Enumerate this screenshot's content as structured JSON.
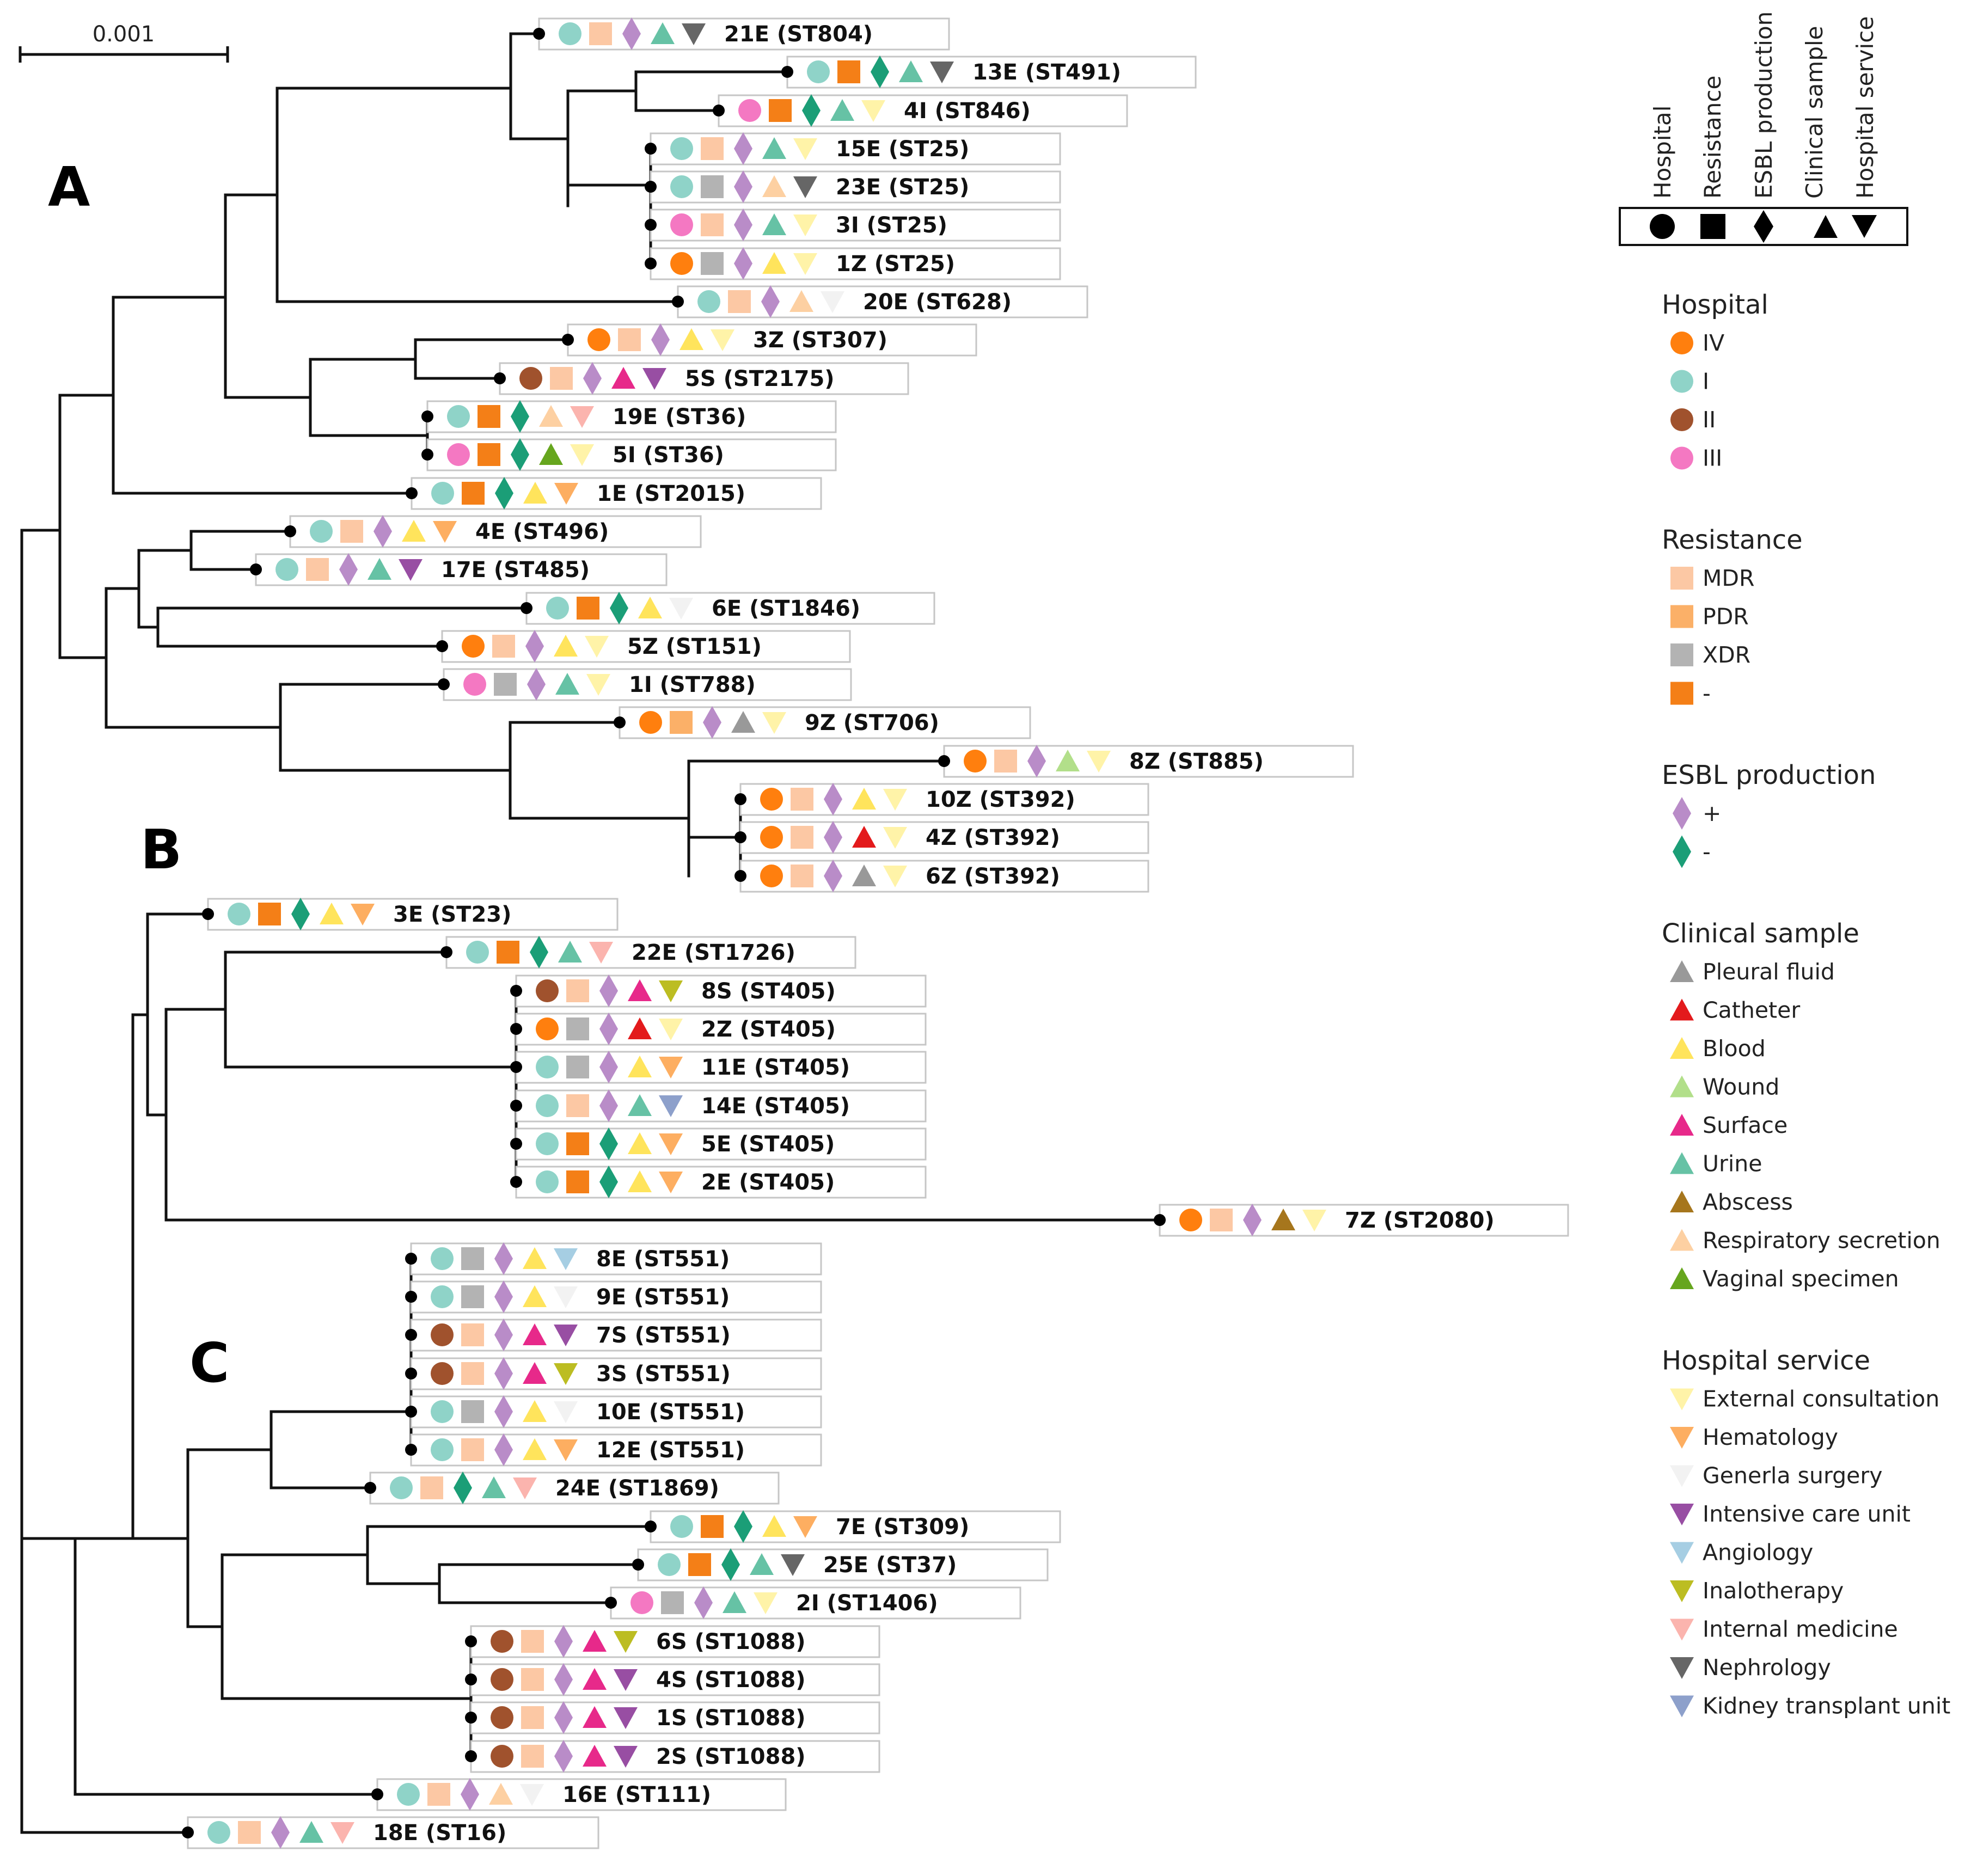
{
  "scale_bar": "0.001",
  "clades": [
    "A",
    "B",
    "C"
  ],
  "key_headers": [
    "Hospital",
    "Resistance",
    "ESBL production",
    "Clinical sample",
    "Hospital service"
  ],
  "colors": {
    "hospital": {
      "IV": "#ff7f0e",
      "I": "#8fd3c8",
      "II": "#a0522d",
      "III": "#f478c2"
    },
    "resistance": {
      "MDR": "#fcc8a4",
      "PDR": "#fbb068",
      "XDR": "#b3b3b3",
      "-": "#f47f17"
    },
    "esbl": {
      "+": "#b98cc8",
      "-": "#1b9e77"
    },
    "sample": {
      "Pleural fluid": "#999999",
      "Catheter": "#e31a1c",
      "Blood": "#ffe45c",
      "Wound": "#b2df8a",
      "Surface": "#e7298a",
      "Urine": "#66c2a5",
      "Abscess": "#a6761d",
      "Respiratory secretion": "#fdd0a2",
      "Vaginal specimen": "#66a61e"
    },
    "service": {
      "External consultation": "#fff3a8",
      "Hematology": "#fdae61",
      "Generla surgery": "#f2f2f2",
      "Intensive care unit": "#984ea3",
      "Angiology": "#a6cee3",
      "Inalotherapy": "#bcbd22",
      "Internal medicine": "#fbb4ae",
      "Nephrology": "#666666",
      "Kidney transplant unit": "#8da0cb"
    }
  },
  "legend": [
    {
      "title": "Hospital",
      "shape": "circle",
      "items": [
        "IV",
        "I",
        "II",
        "III"
      ],
      "key": "hospital"
    },
    {
      "title": "Resistance",
      "shape": "square",
      "items": [
        "MDR",
        "PDR",
        "XDR",
        "-"
      ],
      "key": "resistance"
    },
    {
      "title": "ESBL production",
      "shape": "diamond",
      "items": [
        "+",
        "-"
      ],
      "key": "esbl"
    },
    {
      "title": "Clinical sample",
      "shape": "triangle",
      "items": [
        "Pleural fluid",
        "Catheter",
        "Blood",
        "Wound",
        "Surface",
        "Urine",
        "Abscess",
        "Respiratory secretion",
        "Vaginal specimen"
      ],
      "key": "sample"
    },
    {
      "title": "Hospital service",
      "shape": "inv-triangle",
      "items": [
        "External consultation",
        "Hematology",
        "Generla surgery",
        "Intensive care unit",
        "Angiology",
        "Inalotherapy",
        "Internal medicine",
        "Nephrology",
        "Kidney transplant unit"
      ],
      "key": "service"
    }
  ],
  "leaves": [
    {
      "label": "21E (ST804)",
      "hospital": "I",
      "resistance": "MDR",
      "esbl": "+",
      "sample": "Urine",
      "service": "Nephrology"
    },
    {
      "label": "13E (ST491)",
      "hospital": "I",
      "resistance": "-",
      "esbl": "-",
      "sample": "Urine",
      "service": "Nephrology"
    },
    {
      "label": "4I (ST846)",
      "hospital": "III",
      "resistance": "-",
      "esbl": "-",
      "sample": "Urine",
      "service": "External consultation"
    },
    {
      "label": "15E (ST25)",
      "hospital": "I",
      "resistance": "MDR",
      "esbl": "+",
      "sample": "Urine",
      "service": "External consultation"
    },
    {
      "label": "23E (ST25)",
      "hospital": "I",
      "resistance": "XDR",
      "esbl": "+",
      "sample": "Respiratory secretion",
      "service": "Nephrology"
    },
    {
      "label": "3I (ST25)",
      "hospital": "III",
      "resistance": "MDR",
      "esbl": "+",
      "sample": "Urine",
      "service": "External consultation"
    },
    {
      "label": "1Z (ST25)",
      "hospital": "IV",
      "resistance": "XDR",
      "esbl": "+",
      "sample": "Blood",
      "service": "External consultation"
    },
    {
      "label": "20E (ST628)",
      "hospital": "I",
      "resistance": "MDR",
      "esbl": "+",
      "sample": "Respiratory secretion",
      "service": "Generla surgery"
    },
    {
      "label": "3Z (ST307)",
      "hospital": "IV",
      "resistance": "MDR",
      "esbl": "+",
      "sample": "Blood",
      "service": "External consultation"
    },
    {
      "label": "5S (ST2175)",
      "hospital": "II",
      "resistance": "MDR",
      "esbl": "+",
      "sample": "Surface",
      "service": "Intensive care unit"
    },
    {
      "label": "19E (ST36)",
      "hospital": "I",
      "resistance": "-",
      "esbl": "-",
      "sample": "Respiratory secretion",
      "service": "Internal medicine"
    },
    {
      "label": "5I (ST36)",
      "hospital": "III",
      "resistance": "-",
      "esbl": "-",
      "sample": "Vaginal specimen",
      "service": "External consultation"
    },
    {
      "label": "1E (ST2015)",
      "hospital": "I",
      "resistance": "-",
      "esbl": "-",
      "sample": "Blood",
      "service": "Hematology"
    },
    {
      "label": "4E (ST496)",
      "hospital": "I",
      "resistance": "MDR",
      "esbl": "+",
      "sample": "Blood",
      "service": "Hematology"
    },
    {
      "label": "17E (ST485)",
      "hospital": "I",
      "resistance": "MDR",
      "esbl": "+",
      "sample": "Urine",
      "service": "Intensive care unit"
    },
    {
      "label": "6E (ST1846)",
      "hospital": "I",
      "resistance": "-",
      "esbl": "-",
      "sample": "Blood",
      "service": "Generla surgery"
    },
    {
      "label": "5Z (ST151)",
      "hospital": "IV",
      "resistance": "MDR",
      "esbl": "+",
      "sample": "Blood",
      "service": "External consultation"
    },
    {
      "label": "1I (ST788)",
      "hospital": "III",
      "resistance": "XDR",
      "esbl": "+",
      "sample": "Urine",
      "service": "External consultation"
    },
    {
      "label": "9Z (ST706)",
      "hospital": "IV",
      "resistance": "PDR",
      "esbl": "+",
      "sample": "Pleural fluid",
      "service": "External consultation"
    },
    {
      "label": "8Z (ST885)",
      "hospital": "IV",
      "resistance": "MDR",
      "esbl": "+",
      "sample": "Wound",
      "service": "External consultation"
    },
    {
      "label": "10Z (ST392)",
      "hospital": "IV",
      "resistance": "MDR",
      "esbl": "+",
      "sample": "Blood",
      "service": "External consultation"
    },
    {
      "label": "4Z (ST392)",
      "hospital": "IV",
      "resistance": "MDR",
      "esbl": "+",
      "sample": "Catheter",
      "service": "External consultation"
    },
    {
      "label": "6Z (ST392)",
      "hospital": "IV",
      "resistance": "MDR",
      "esbl": "+",
      "sample": "Pleural fluid",
      "service": "External consultation"
    },
    {
      "label": "3E (ST23)",
      "hospital": "I",
      "resistance": "-",
      "esbl": "-",
      "sample": "Blood",
      "service": "Hematology"
    },
    {
      "label": "22E (ST1726)",
      "hospital": "I",
      "resistance": "-",
      "esbl": "-",
      "sample": "Urine",
      "service": "Internal medicine"
    },
    {
      "label": "8S (ST405)",
      "hospital": "II",
      "resistance": "MDR",
      "esbl": "+",
      "sample": "Surface",
      "service": "Inalotherapy"
    },
    {
      "label": "2Z (ST405)",
      "hospital": "IV",
      "resistance": "XDR",
      "esbl": "+",
      "sample": "Catheter",
      "service": "External consultation"
    },
    {
      "label": "11E (ST405)",
      "hospital": "I",
      "resistance": "XDR",
      "esbl": "+",
      "sample": "Blood",
      "service": "Hematology"
    },
    {
      "label": "14E (ST405)",
      "hospital": "I",
      "resistance": "MDR",
      "esbl": "+",
      "sample": "Urine",
      "service": "Kidney transplant unit"
    },
    {
      "label": "5E (ST405)",
      "hospital": "I",
      "resistance": "-",
      "esbl": "-",
      "sample": "Blood",
      "service": "Hematology"
    },
    {
      "label": "2E (ST405)",
      "hospital": "I",
      "resistance": "-",
      "esbl": "-",
      "sample": "Blood",
      "service": "Hematology"
    },
    {
      "label": "7Z (ST2080)",
      "hospital": "IV",
      "resistance": "MDR",
      "esbl": "+",
      "sample": "Abscess",
      "service": "External consultation"
    },
    {
      "label": "8E (ST551)",
      "hospital": "I",
      "resistance": "XDR",
      "esbl": "+",
      "sample": "Blood",
      "service": "Angiology"
    },
    {
      "label": "9E (ST551)",
      "hospital": "I",
      "resistance": "XDR",
      "esbl": "+",
      "sample": "Blood",
      "service": "Generla surgery"
    },
    {
      "label": "7S (ST551)",
      "hospital": "II",
      "resistance": "MDR",
      "esbl": "+",
      "sample": "Surface",
      "service": "Intensive care unit"
    },
    {
      "label": "3S (ST551)",
      "hospital": "II",
      "resistance": "MDR",
      "esbl": "+",
      "sample": "Surface",
      "service": "Inalotherapy"
    },
    {
      "label": "10E (ST551)",
      "hospital": "I",
      "resistance": "XDR",
      "esbl": "+",
      "sample": "Blood",
      "service": "Generla surgery"
    },
    {
      "label": "12E (ST551)",
      "hospital": "I",
      "resistance": "MDR",
      "esbl": "+",
      "sample": "Blood",
      "service": "Hematology"
    },
    {
      "label": "24E (ST1869)",
      "hospital": "I",
      "resistance": "MDR",
      "esbl": "-",
      "sample": "Urine",
      "service": "Internal medicine"
    },
    {
      "label": "7E (ST309)",
      "hospital": "I",
      "resistance": "-",
      "esbl": "-",
      "sample": "Blood",
      "service": "Hematology"
    },
    {
      "label": "25E (ST37)",
      "hospital": "I",
      "resistance": "-",
      "esbl": "-",
      "sample": "Urine",
      "service": "Nephrology"
    },
    {
      "label": "2I (ST1406)",
      "hospital": "III",
      "resistance": "XDR",
      "esbl": "+",
      "sample": "Urine",
      "service": "External consultation"
    },
    {
      "label": "6S (ST1088)",
      "hospital": "II",
      "resistance": "MDR",
      "esbl": "+",
      "sample": "Surface",
      "service": "Inalotherapy"
    },
    {
      "label": "4S (ST1088)",
      "hospital": "II",
      "resistance": "MDR",
      "esbl": "+",
      "sample": "Surface",
      "service": "Intensive care unit"
    },
    {
      "label": "1S (ST1088)",
      "hospital": "II",
      "resistance": "MDR",
      "esbl": "+",
      "sample": "Surface",
      "service": "Intensive care unit"
    },
    {
      "label": "2S (ST1088)",
      "hospital": "II",
      "resistance": "MDR",
      "esbl": "+",
      "sample": "Surface",
      "service": "Intensive care unit"
    },
    {
      "label": "16E (ST111)",
      "hospital": "I",
      "resistance": "MDR",
      "esbl": "+",
      "sample": "Respiratory secretion",
      "service": "Generla surgery"
    },
    {
      "label": "18E (ST16)",
      "hospital": "I",
      "resistance": "MDR",
      "esbl": "+",
      "sample": "Urine",
      "service": "Internal medicine"
    }
  ]
}
